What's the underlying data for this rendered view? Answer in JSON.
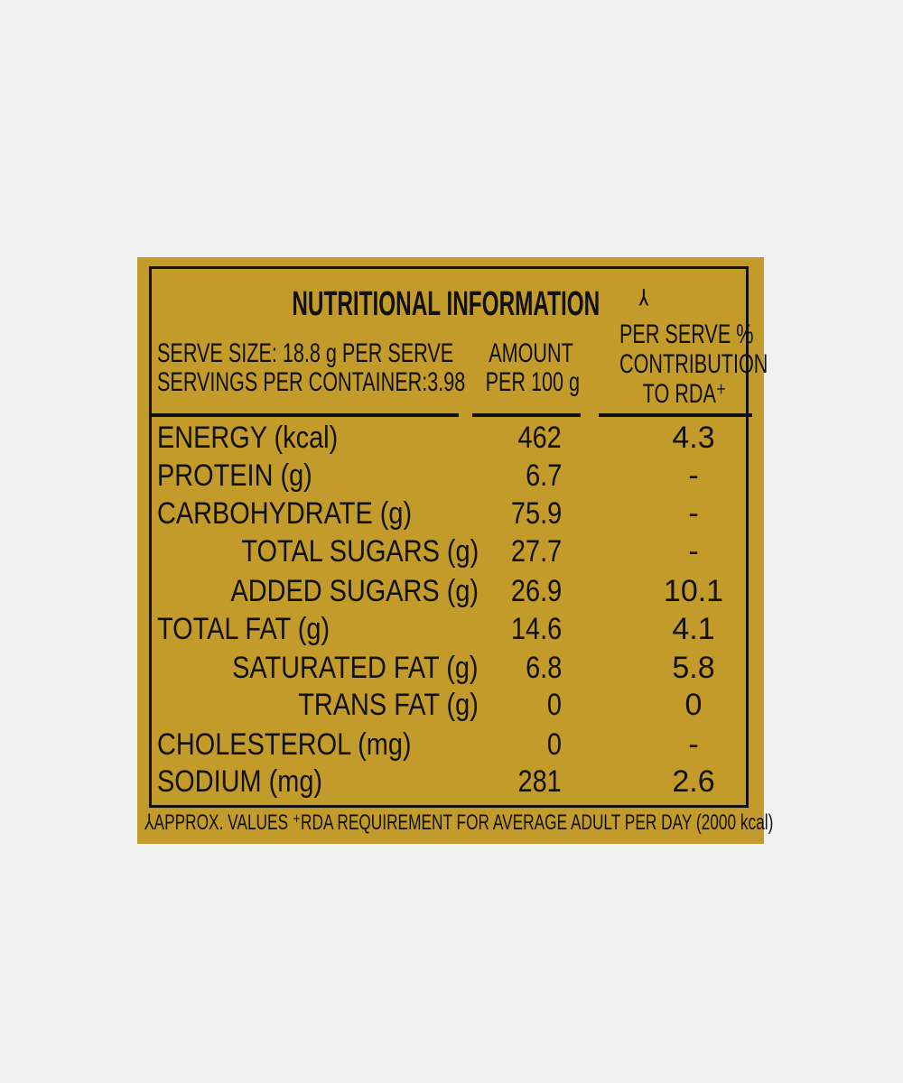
{
  "label": {
    "title": "NUTRITIONAL INFORMATION",
    "title_mark": "⅄",
    "serve_size": "SERVE SIZE: 18.8 g PER SERVE",
    "servings_per_container": "SERVINGS PER CONTAINER:3.98",
    "col_amount": [
      "AMOUNT",
      "PER 100 g"
    ],
    "col_rda": [
      "PER SERVE %",
      "CONTRIBUTION",
      "TO RDA⁺"
    ],
    "rows": [
      {
        "name": "ENERGY (kcal)",
        "amount": "462",
        "rda": "4.3"
      },
      {
        "name": "PROTEIN (g)",
        "amount": "6.7",
        "rda": "-"
      },
      {
        "name": "CARBOHYDRATE (g)",
        "amount": "75.9",
        "rda": "-"
      },
      {
        "name": "TOTAL SUGARS (g)",
        "amount": "27.7",
        "rda": "-"
      },
      {
        "name": "ADDED SUGARS (g)",
        "amount": "26.9",
        "rda": "10.1"
      },
      {
        "name": "TOTAL FAT (g)",
        "amount": "14.6",
        "rda": "4.1"
      },
      {
        "name": "SATURATED FAT (g)",
        "amount": "6.8",
        "rda": "5.8"
      },
      {
        "name": "TRANS FAT (g)",
        "amount": "0",
        "rda": "0"
      },
      {
        "name": "CHOLESTEROL (mg)",
        "amount": "0",
        "rda": "-"
      },
      {
        "name": "SODIUM (mg)",
        "amount": "281",
        "rda": "2.6"
      }
    ],
    "footnote": "⅄APPROX. VALUES ⁺RDA REQUIREMENT FOR AVERAGE ADULT PER DAY (2000 kcal)",
    "colors": {
      "background": "#c39b2b",
      "text": "#111111",
      "page": "#f1f1f1"
    }
  }
}
